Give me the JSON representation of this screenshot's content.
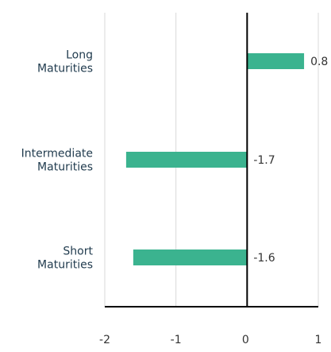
{
  "chart_data": {
    "type": "bar",
    "orientation": "horizontal",
    "categories": [
      [
        "Long",
        "Maturities"
      ],
      [
        "Intermediate",
        "Maturities"
      ],
      [
        "Short",
        "Maturities"
      ]
    ],
    "values": [
      0.8,
      -1.7,
      -1.6
    ],
    "value_labels": [
      "0.8",
      "-1.7",
      "-1.6"
    ],
    "xlim": [
      -2,
      1
    ],
    "xticks": [
      -2,
      -1,
      0,
      1
    ],
    "xtick_labels": [
      "-2",
      "-1",
      "0",
      "1"
    ],
    "grid": "vertical",
    "legend": "none",
    "title": "",
    "xlabel": "",
    "ylabel": ""
  },
  "colors": {
    "bar": "#3bb38f",
    "grid": "#d9d9d9",
    "axis": "#000000",
    "text": "#333333",
    "category_text": "#1f3a4d"
  }
}
